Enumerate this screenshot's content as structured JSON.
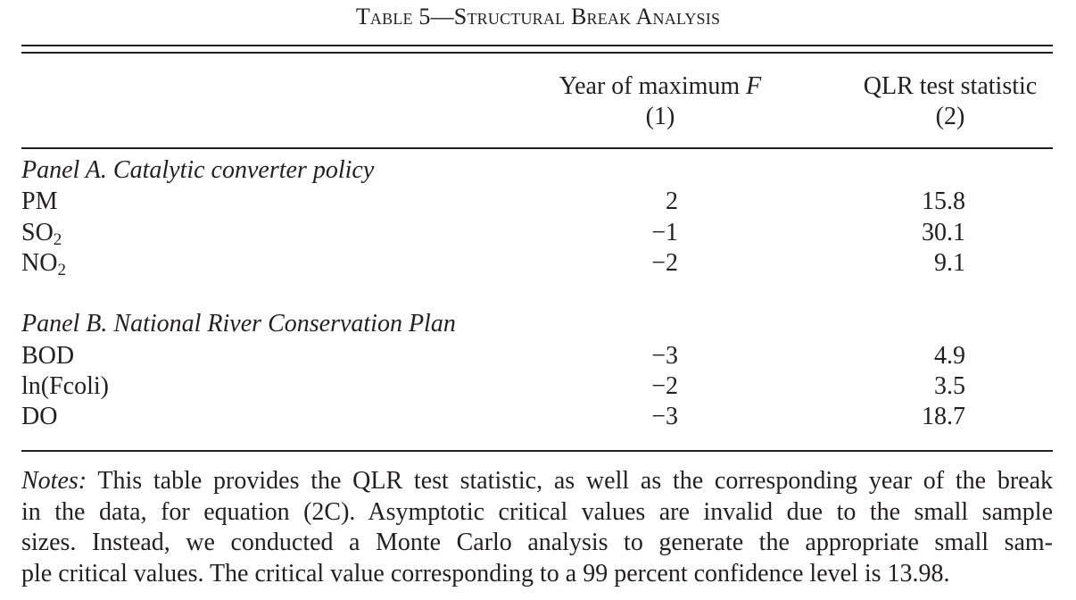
{
  "table": {
    "title": "Table 5—Structural Break Analysis",
    "columns": [
      {
        "label_pre": "Year of maximum ",
        "label_italic": "F",
        "number": "(1)"
      },
      {
        "label_pre": "QLR test statistic",
        "label_italic": "",
        "number": "(2)"
      }
    ],
    "panels": [
      {
        "title": "Panel A. Catalytic converter policy",
        "rows": [
          {
            "label": "PM",
            "sub": "",
            "year": "2",
            "qlr": "15.8"
          },
          {
            "label": "SO",
            "sub": "2",
            "year": "−1",
            "qlr": "30.1"
          },
          {
            "label": "NO",
            "sub": "2",
            "year": "−2",
            "qlr": "9.1"
          }
        ]
      },
      {
        "title": "Panel B. National River Conservation Plan",
        "rows": [
          {
            "label": "BOD",
            "sub": "",
            "year": "−3",
            "qlr": "4.9"
          },
          {
            "label": "ln(Fcoli)",
            "sub": "",
            "year": "−2",
            "qlr": "3.5"
          },
          {
            "label": "DO",
            "sub": "",
            "year": "−3",
            "qlr": "18.7"
          }
        ]
      }
    ],
    "notes": {
      "lead": "Notes:",
      "lines": [
        " This table provides the QLR test statistic, as well as the corresponding year of the break",
        "in the data, for equation (2C). Asymptotic critical values are invalid due to the small sample",
        "sizes. Instead, we conducted a Monte Carlo analysis to generate the appropriate small sam-",
        "ple critical values. The critical value corresponding to a 99 percent confidence level is 13.98."
      ]
    }
  }
}
